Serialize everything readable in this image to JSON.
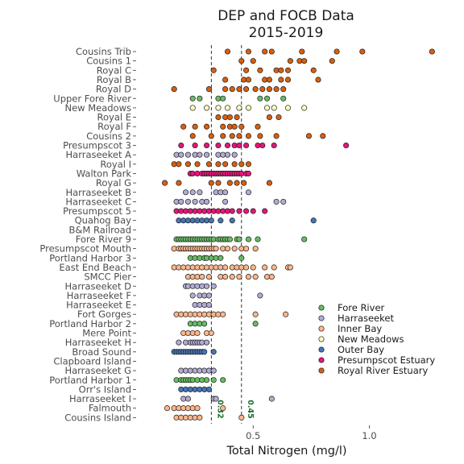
{
  "chart_data": {
    "type": "scatter",
    "title": [
      "DEP and FOCB Data",
      "2015-2019"
    ],
    "xlabel": "Total Nitrogen (mg/l)",
    "ylabel": "",
    "xlim": [
      0.08,
      1.3
    ],
    "x_ticks": [
      0.5,
      1.0
    ],
    "x_tick_labels": [
      "0.5",
      "1.0"
    ],
    "grid": false,
    "legend_position": "bottom-right",
    "reference_lines": [
      {
        "x": 0.32,
        "label": "0.32",
        "color": "#1b6e2e"
      },
      {
        "x": 0.45,
        "label": "0.45",
        "color": "#1b6e2e"
      }
    ],
    "categories": [
      "Cousins Trib",
      "Cousins 1",
      "Royal C",
      "Royal B",
      "Royal D",
      "Upper Fore River",
      "New Meadows",
      "Royal E",
      "Royal F",
      "Cousins 2",
      "Presumpscot 3",
      "Harraseeket A",
      "Royal I",
      "Walton Park",
      "Royal G",
      "Harraseeket B",
      "Harraseeket C",
      "Presumpscot 5",
      "Quahog Bay",
      "B&M Railroad",
      "Fore River 9",
      "Presumpscot Mouth",
      "Portland Harbor 3",
      "East End Beach",
      "SMCC Pier",
      "Harraseeket D",
      "Harraseeket F",
      "Harraseeket E",
      "Fort Gorges",
      "Portland Harbor 2",
      "Mere Point",
      "Harraseeket H",
      "Broad Sound",
      "Clapboard Island",
      "Harraseeket G",
      "Portland Harbor 1",
      "Orr's Island",
      "Harraseeket I",
      "Falmouth",
      "Cousins Island"
    ],
    "series": [
      {
        "name": "Fore River",
        "color": "#66bd63",
        "points": [
          {
            "site": "Upper Fore River",
            "values": [
              0.24,
              0.27,
              0.35,
              0.37,
              0.53,
              0.56,
              0.63
            ]
          },
          {
            "site": "Fore River 9",
            "values": [
              0.17,
              0.18,
              0.19,
              0.2,
              0.21,
              0.22,
              0.23,
              0.24,
              0.25,
              0.26,
              0.27,
              0.28,
              0.29,
              0.3,
              0.31,
              0.32,
              0.33,
              0.35,
              0.36,
              0.37,
              0.38,
              0.39,
              0.4,
              0.43,
              0.44,
              0.48,
              0.52,
              0.72
            ]
          },
          {
            "site": "Portland Harbor 3",
            "values": [
              0.23,
              0.25,
              0.27,
              0.29,
              0.3,
              0.32,
              0.34,
              0.36,
              0.45
            ]
          },
          {
            "site": "Portland Harbor 2",
            "values": [
              0.23,
              0.25,
              0.27,
              0.29,
              0.51
            ]
          },
          {
            "site": "Portland Harbor 1",
            "values": [
              0.17,
              0.19,
              0.2,
              0.21,
              0.22,
              0.23,
              0.24,
              0.26,
              0.28,
              0.3,
              0.33,
              0.37
            ]
          }
        ]
      },
      {
        "name": "Harraseeket",
        "color": "#b2abd2",
        "points": [
          {
            "site": "Harraseeket A",
            "values": [
              0.17,
              0.19,
              0.22,
              0.25,
              0.27,
              0.3,
              0.35,
              0.37,
              0.39,
              0.42
            ]
          },
          {
            "site": "Harraseeket B",
            "values": [
              0.21,
              0.24,
              0.27,
              0.34,
              0.36,
              0.38,
              0.48
            ]
          },
          {
            "site": "Harraseeket C",
            "values": [
              0.17,
              0.19,
              0.22,
              0.25,
              0.28,
              0.3,
              0.38,
              0.6,
              0.63
            ]
          },
          {
            "site": "Harraseeket D",
            "values": [
              0.21,
              0.22,
              0.24,
              0.26,
              0.28,
              0.3,
              0.33
            ]
          },
          {
            "site": "Harraseeket F",
            "values": [
              0.24,
              0.27,
              0.29,
              0.31,
              0.53
            ]
          },
          {
            "site": "Harraseeket E",
            "values": [
              0.25,
              0.27,
              0.29,
              0.31
            ]
          },
          {
            "site": "Harraseeket H",
            "values": [
              0.18,
              0.21,
              0.23,
              0.24,
              0.25,
              0.26,
              0.27,
              0.28,
              0.3
            ]
          },
          {
            "site": "Harraseeket G",
            "values": [
              0.19,
              0.21,
              0.23,
              0.25,
              0.27,
              0.29,
              0.31,
              0.33
            ]
          },
          {
            "site": "Harraseeket I",
            "values": [
              0.2,
              0.22,
              0.33,
              0.34,
              0.58
            ]
          }
        ]
      },
      {
        "name": "Inner Bay",
        "color": "#fdb78a",
        "points": [
          {
            "site": "Presumpscot Mouth",
            "values": [
              0.16,
              0.18,
              0.19,
              0.2,
              0.21,
              0.22,
              0.23,
              0.24,
              0.25,
              0.26,
              0.27,
              0.28,
              0.29,
              0.3,
              0.31,
              0.32,
              0.33,
              0.34,
              0.37,
              0.39,
              0.42,
              0.45,
              0.47,
              0.51
            ]
          },
          {
            "site": "East End Beach",
            "values": [
              0.16,
              0.18,
              0.2,
              0.22,
              0.24,
              0.26,
              0.28,
              0.3,
              0.32,
              0.34,
              0.36,
              0.38,
              0.41,
              0.43,
              0.45,
              0.47,
              0.5,
              0.55,
              0.59,
              0.65,
              0.66
            ]
          },
          {
            "site": "SMCC Pier",
            "values": [
              0.22,
              0.24,
              0.26,
              0.28,
              0.31,
              0.36,
              0.38,
              0.41,
              0.44,
              0.48,
              0.51,
              0.56,
              0.58
            ]
          },
          {
            "site": "Fort Gorges",
            "values": [
              0.17,
              0.19,
              0.21,
              0.23,
              0.25,
              0.27,
              0.29,
              0.31,
              0.33,
              0.35,
              0.37,
              0.51,
              0.64
            ]
          },
          {
            "site": "Mere Point",
            "values": [
              0.2,
              0.22,
              0.24,
              0.26,
              0.3,
              0.32
            ]
          },
          {
            "site": "Falmouth",
            "values": [
              0.13,
              0.16,
              0.18,
              0.2,
              0.22,
              0.24,
              0.26,
              0.37
            ]
          },
          {
            "site": "Cousins Island",
            "values": [
              0.17,
              0.19,
              0.21,
              0.23,
              0.25,
              0.27,
              0.45
            ]
          }
        ]
      },
      {
        "name": "New Meadows",
        "color": "#ffffbf",
        "points": [
          {
            "site": "New Meadows",
            "values": [
              0.24,
              0.3,
              0.35,
              0.39,
              0.44,
              0.48,
              0.56,
              0.59,
              0.65,
              0.72
            ]
          }
        ]
      },
      {
        "name": "Outer Bay",
        "color": "#4575b4",
        "points": [
          {
            "site": "Quahog Bay",
            "values": [
              0.18,
              0.2,
              0.22,
              0.24,
              0.26,
              0.28,
              0.3,
              0.32,
              0.36,
              0.41,
              0.76
            ]
          },
          {
            "site": "Broad Sound",
            "values": [
              0.16,
              0.17,
              0.18,
              0.19,
              0.2,
              0.21,
              0.22,
              0.23,
              0.24,
              0.25,
              0.26,
              0.27,
              0.28,
              0.29,
              0.33
            ]
          },
          {
            "site": "Orr's Island",
            "values": [
              0.19,
              0.21,
              0.23,
              0.25,
              0.27,
              0.29,
              0.31
            ]
          }
        ]
      },
      {
        "name": "Presumpscot Estuary",
        "color": "#e7157a",
        "points": [
          {
            "site": "Presumpscot 3",
            "values": [
              0.19,
              0.25,
              0.3,
              0.35,
              0.39,
              0.42,
              0.44,
              0.47,
              0.52,
              0.54,
              0.59,
              0.9
            ]
          },
          {
            "site": "Walton Park",
            "values": [
              0.23,
              0.24,
              0.26,
              0.28,
              0.29,
              0.3,
              0.31,
              0.32,
              0.33,
              0.34,
              0.35,
              0.36,
              0.37,
              0.38,
              0.39,
              0.4,
              0.41,
              0.42,
              0.43,
              0.44,
              0.45,
              0.47,
              0.48
            ]
          },
          {
            "site": "Presumpscot 5",
            "values": [
              0.17,
              0.19,
              0.21,
              0.23,
              0.25,
              0.27,
              0.29,
              0.31,
              0.33,
              0.35,
              0.37,
              0.39,
              0.41,
              0.44,
              0.47,
              0.5,
              0.55
            ]
          }
        ]
      },
      {
        "name": "Royal River Estuary",
        "color": "#d95f0e",
        "points": [
          {
            "site": "Cousins Trib",
            "values": [
              0.39,
              0.48,
              0.55,
              0.58,
              0.71,
              0.86,
              0.97,
              1.27
            ]
          },
          {
            "site": "Cousins 1",
            "values": [
              0.45,
              0.5,
              0.66,
              0.7,
              0.72,
              0.84
            ]
          },
          {
            "site": "Royal C",
            "values": [
              0.33,
              0.47,
              0.53,
              0.6,
              0.62,
              0.65,
              0.76
            ]
          },
          {
            "site": "Royal B",
            "values": [
              0.38,
              0.46,
              0.48,
              0.55,
              0.57,
              0.62,
              0.65,
              0.78
            ]
          },
          {
            "site": "Royal D",
            "values": [
              0.16,
              0.31,
              0.38,
              0.41,
              0.44,
              0.47,
              0.51,
              0.54,
              0.57,
              0.6,
              0.63
            ]
          },
          {
            "site": "Royal E",
            "values": [
              0.35,
              0.38,
              0.4,
              0.43,
              0.57,
              0.61
            ]
          },
          {
            "site": "Royal F",
            "values": [
              0.2,
              0.25,
              0.3,
              0.37,
              0.4,
              0.42,
              0.45,
              0.52
            ]
          },
          {
            "site": "Cousins 2",
            "values": [
              0.24,
              0.32,
              0.37,
              0.41,
              0.44,
              0.48,
              0.53,
              0.6,
              0.74,
              0.8
            ]
          },
          {
            "site": "Royal I",
            "values": [
              0.16,
              0.18,
              0.22,
              0.26,
              0.31,
              0.35,
              0.38,
              0.42,
              0.45,
              0.48
            ]
          },
          {
            "site": "Royal G",
            "values": [
              0.12,
              0.18,
              0.32,
              0.35,
              0.4,
              0.43,
              0.46,
              0.57
            ]
          }
        ]
      }
    ]
  }
}
